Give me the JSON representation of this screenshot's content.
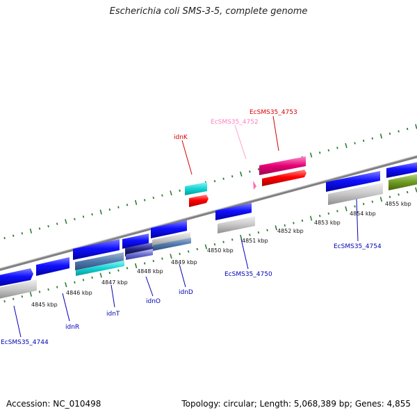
{
  "header": {
    "title": "Escherichia coli SMS-3-5, complete genome"
  },
  "footer": {
    "accession": "Accession: NC_010498",
    "summary": "Topology: circular; Length: 5,068,389 bp; Genes: 4,855"
  },
  "axis": {
    "ticks": [
      "4845 kbp",
      "4846 kbp",
      "4847 kbp",
      "4848 kbp",
      "4849 kbp",
      "4850 kbp",
      "4851 kbp",
      "4852 kbp",
      "4853 kbp",
      "4854 kbp",
      "4855 kbp"
    ]
  },
  "genes": {
    "top": [
      "EcSMS35_4753",
      "EcSMS35_4752",
      "idnK"
    ],
    "bottom": [
      "EcSMS35_4744",
      "idnR",
      "idnT",
      "idnO",
      "idnD",
      "EcSMS35_4750",
      "EcSMS35_4754"
    ]
  },
  "colors": {
    "forward_cds": "#e8006a",
    "forward_rna": "#ff7fbf",
    "reverse_cds": "#0000ff",
    "backbone": "#7f7f7f",
    "tick": "#2e7d32",
    "label_red": "#d60000",
    "label_pink": "#ff7fbf",
    "label_blue": "#0000b3"
  }
}
